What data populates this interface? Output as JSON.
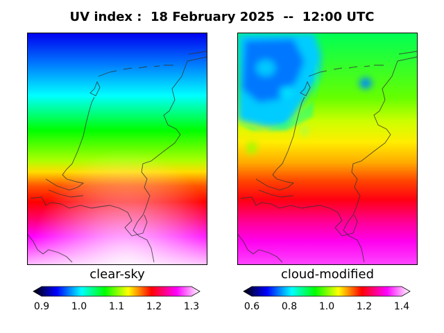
{
  "title": "UV index :  18 February 2025  --  12:00 UTC",
  "panels": [
    {
      "label": "clear-sky",
      "colorbar": {
        "ticks": [
          "0.9",
          "1.0",
          "1.1",
          "1.2",
          "1.3"
        ],
        "range": [
          0.9,
          1.3
        ]
      }
    },
    {
      "label": "cloud-modified",
      "colorbar": {
        "ticks": [
          "0.6",
          "0.8",
          "1.0",
          "1.2",
          "1.4"
        ],
        "range": [
          0.6,
          1.4
        ]
      }
    }
  ],
  "colormap": [
    "#000000",
    "#0000ff",
    "#00ffff",
    "#00ff00",
    "#ffff00",
    "#ff0000",
    "#ff00ff",
    "#ffffff"
  ],
  "map_region": "Netherlands"
}
